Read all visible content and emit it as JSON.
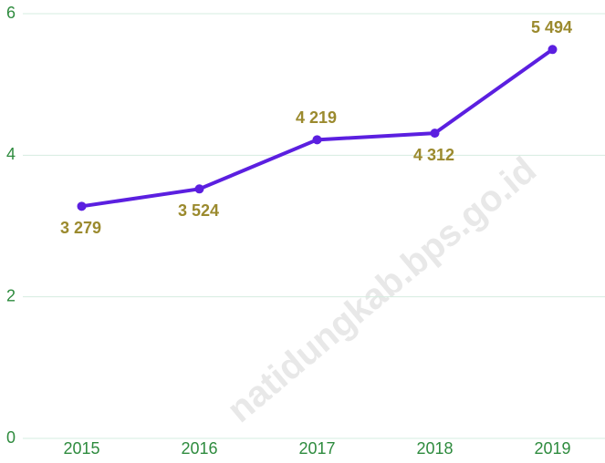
{
  "chart_data": {
    "type": "line",
    "watermark": "natidungkab.bps.go.id",
    "categories": [
      "2015",
      "2016",
      "2017",
      "2018",
      "2019"
    ],
    "series": [
      {
        "name": null,
        "color": "#5b1fe0",
        "values": [
          3.279,
          3.524,
          4.219,
          4.312,
          5.494
        ],
        "value_labels": [
          "3 279",
          "3 524",
          "4 219",
          "4 312",
          "5 494"
        ]
      }
    ],
    "ylim": [
      0,
      6
    ],
    "yticks": [
      0,
      2,
      4,
      6
    ],
    "grid": true
  }
}
